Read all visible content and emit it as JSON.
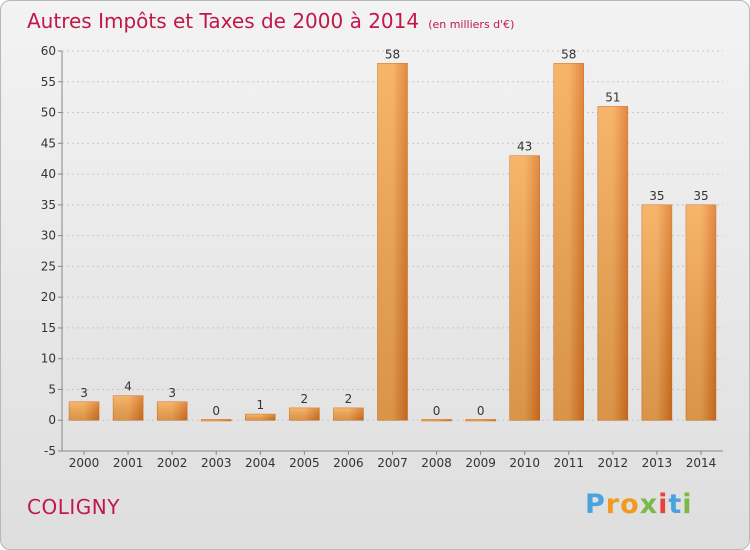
{
  "title": "Autres Impôts et Taxes de 2000 à 2014",
  "subtitle": "(en milliers d'€)",
  "city": "COLIGNY",
  "logo_text": "Proxiti",
  "colors": {
    "title": "#c1174a",
    "bar_light": "#f6a852",
    "bar_dark": "#dd7420",
    "grid": "#c8c8c8"
  },
  "chart_data": {
    "type": "bar",
    "title": "Autres Impôts et Taxes de 2000 à 2014",
    "subtitle": "(en milliers d'€)",
    "xlabel": "",
    "ylabel": "",
    "categories": [
      "2000",
      "2001",
      "2002",
      "2003",
      "2004",
      "2005",
      "2006",
      "2007",
      "2008",
      "2009",
      "2010",
      "2011",
      "2012",
      "2013",
      "2014"
    ],
    "values": [
      3,
      4,
      3,
      0,
      1,
      2,
      2,
      58,
      0,
      0,
      43,
      58,
      51,
      35,
      35
    ],
    "ylim": [
      -5,
      60
    ],
    "yticks": [
      -5,
      0,
      5,
      10,
      15,
      20,
      25,
      30,
      35,
      40,
      45,
      50,
      55,
      60
    ],
    "grid": "horizontal dashed",
    "legend": "none"
  }
}
